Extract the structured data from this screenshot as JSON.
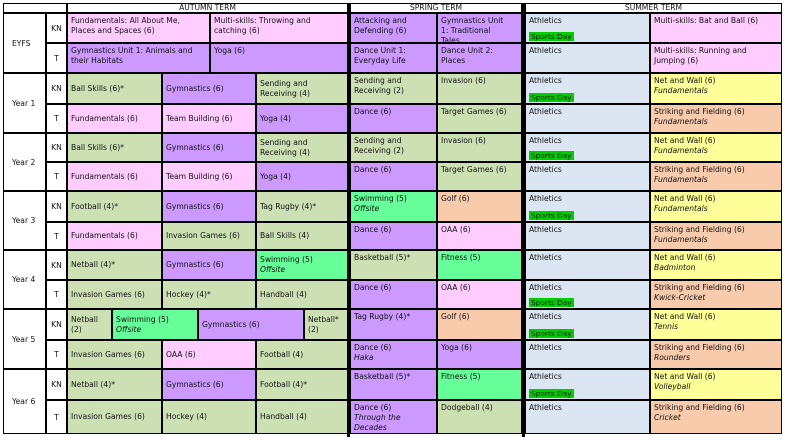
{
  "headers": [
    "AUTUMN TERM",
    "SPRING TERM",
    "SUMMER TERM"
  ],
  "year_labels": [
    "EYFS",
    "Year 1",
    "Year 2",
    "Year 3",
    "Year 4",
    "Year 5",
    "Year 6"
  ],
  "class_labels": [
    "KN",
    "T"
  ],
  "sports_day": "Sports Day",
  "colors": {
    "pink": "#ffccff",
    "purple": "#cc99ff",
    "green": "#cce0b4",
    "lightgreen": "#66ff99",
    "peach": "#f8cbad",
    "yellow": "#ffff99",
    "blue": "#dce6f2",
    "sports_day": "#00cc00"
  },
  "cells": [
    {
      "l1": "Fundamentals: All About Me,\nPlaces and Spaces (6)"
    },
    {
      "l1": "Multi-skills: Throwing and\ncatching (6)"
    },
    {
      "l1": "Attacking and\nDefending (6)"
    },
    {
      "l1": "Gymnastics Unit\n1: Traditional\nTales"
    },
    {
      "l1": "Athletics"
    },
    {
      "l1": "Multi-skills: Bat and Ball (6)"
    },
    {
      "l1": "Gymnastics Unit 1: Animals and\ntheir Habitats"
    },
    {
      "l1": "Yoga (6)"
    },
    {
      "l1": "Dance Unit 1:\nEveryday Life"
    },
    {
      "l1": "Dance Unit 2:\nPlaces"
    },
    {
      "l1": "Athletics"
    },
    {
      "l1": "Multi-skills: Running and\nJumping (6)"
    },
    {
      "l1": "Ball Skills (6)*"
    },
    {
      "l1": "Gymnastics (6)"
    },
    {
      "l1": "Sending and\nReceiving (4)"
    },
    {
      "l1": "Sending and\nReceiving (2)"
    },
    {
      "l1": "Invasion (6)"
    },
    {
      "l1": "Athletics"
    },
    {
      "l1": "Net and Wall (6)",
      "l2": "Fundamentals"
    },
    {
      "l1": "Fundamentals (6)"
    },
    {
      "l1": "Team Building (6)"
    },
    {
      "l1": "Yoga (4)"
    },
    {
      "l1": "Dance (6)"
    },
    {
      "l1": "Target Games (6)"
    },
    {
      "l1": "Athletics"
    },
    {
      "l1": "Striking and Fielding (6)",
      "l2": "Fundamentals"
    },
    {
      "l1": "Ball Skills (6)*"
    },
    {
      "l1": "Gymnastics (6)"
    },
    {
      "l1": "Sending and\nReceiving (4)"
    },
    {
      "l1": "Sending and\nReceiving (2)"
    },
    {
      "l1": "Invasion (6)"
    },
    {
      "l1": "Athletics"
    },
    {
      "l1": "Net and Wall (6)",
      "l2": "Fundamentals"
    },
    {
      "l1": "Fundamentals (6)"
    },
    {
      "l1": "Team Building (6)"
    },
    {
      "l1": "Yoga (4)"
    },
    {
      "l1": "Dance (6)"
    },
    {
      "l1": "Target Games (6)"
    },
    {
      "l1": "Athletics"
    },
    {
      "l1": "Striking and Fielding (6)",
      "l2": "Fundamentals"
    },
    {
      "l1": "Football (4)*"
    },
    {
      "l1": "Gymnastics (6)"
    },
    {
      "l1": "Tag Rugby (4)*"
    },
    {
      "l1": "Swimming (5)",
      "l2": "Offsite"
    },
    {
      "l1": "Golf (6)"
    },
    {
      "l1": "Athletics"
    },
    {
      "l1": "Net and Wall (6)",
      "l2": "Fundamentals"
    },
    {
      "l1": "Fundamentals (6)"
    },
    {
      "l1": "Invasion Games (6)"
    },
    {
      "l1": "Ball Skills (4)"
    },
    {
      "l1": "Dance (6)"
    },
    {
      "l1": "OAA (6)"
    },
    {
      "l1": "Athletics"
    },
    {
      "l1": "Striking and Fielding (6)",
      "l2": "Fundamentals"
    },
    {
      "l1": "Netball (4)*"
    },
    {
      "l1": "Gymnastics (6)"
    },
    {
      "l1": "Swimming (5)",
      "l2": "Offsite"
    },
    {
      "l1": "Basketball (5)*"
    },
    {
      "l1": "Fitness (5)"
    },
    {
      "l1": "Athletics"
    },
    {
      "l1": "Net and Wall (6)",
      "l2": "Badminton"
    },
    {
      "l1": "Invasion Games (6)"
    },
    {
      "l1": "Hockey (4)*"
    },
    {
      "l1": "Handball (4)"
    },
    {
      "l1": "Dance (6)"
    },
    {
      "l1": "OAA (6)"
    },
    {
      "l1": "Athletics"
    },
    {
      "l1": "Striking and Fielding (6)",
      "l2": "Kwick-Cricket"
    },
    {
      "l1": "Netball\n(2)"
    },
    {
      "l1": "Swimming (5)",
      "l2": "Offsite"
    },
    {
      "l1": "Gymnastics (6)"
    },
    {
      "l1": "Netball*\n(2)"
    },
    {
      "l1": "Tag Rugby (4)*"
    },
    {
      "l1": "Golf (6)"
    },
    {
      "l1": "Athletics"
    },
    {
      "l1": "Net and Wall (6)",
      "l2": "Tennis"
    },
    {
      "l1": "Invasion Games (6)"
    },
    {
      "l1": "OAA (6)"
    },
    {
      "l1": "Football (4)"
    },
    {
      "l1": "Dance (6)",
      "l2": "Haka"
    },
    {
      "l1": "Yoga (6)"
    },
    {
      "l1": "Athletics"
    },
    {
      "l1": "Striking and Fielding (6)",
      "l2": "Rounders"
    },
    {
      "l1": "Netball (4)*"
    },
    {
      "l1": "Gymnastics (6)"
    },
    {
      "l1": "Football (4)*"
    },
    {
      "l1": "Basketball (5)*"
    },
    {
      "l1": "Fitness (5)"
    },
    {
      "l1": "Athletics"
    },
    {
      "l1": "Net and Wall (6)",
      "l2": "Volleyball"
    },
    {
      "l1": "Invasion Games (6)"
    },
    {
      "l1": "Hockey (4)"
    },
    {
      "l1": "Handball (4)"
    },
    {
      "l1": "Dance (6)",
      "l2": "Through the\nDecades"
    },
    {
      "l1": "Dodgeball (4)"
    },
    {
      "l1": "Athletics"
    },
    {
      "l1": "Striking and Fielding (6)",
      "l2": "Cricket"
    }
  ]
}
